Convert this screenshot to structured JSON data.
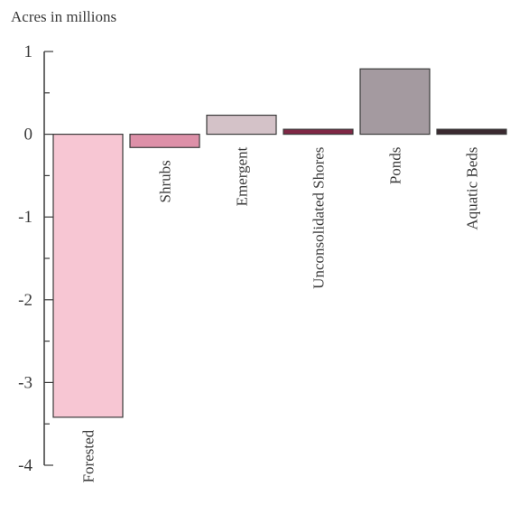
{
  "chart_data": {
    "type": "bar",
    "ylabel": "Acres in millions",
    "ylim": [
      -4,
      1
    ],
    "yticks": [
      "1",
      "0",
      "-1",
      "-2",
      "-3",
      "-4"
    ],
    "categories": [
      "Forested",
      "Shrubs",
      "Emergent",
      "Unconsolidated Shores",
      "Ponds",
      "Aquatic Beds"
    ],
    "values": [
      -3.42,
      -0.16,
      0.23,
      0.06,
      0.79,
      0.06
    ],
    "colors": [
      "#f7c6d3",
      "#dd90a8",
      "#d4c2c8",
      "#7f2745",
      "#a49aa0",
      "#3b2a30"
    ],
    "grid": false,
    "legend": "none"
  }
}
